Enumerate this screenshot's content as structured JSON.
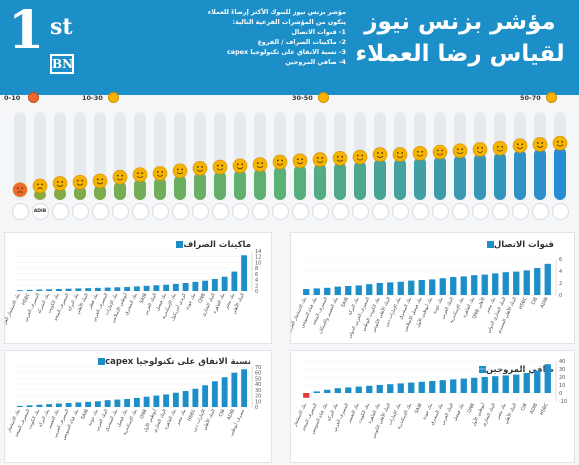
{
  "header": {
    "title_line1": "مؤشر بزنس نيوز",
    "title_line2": "لقياس رضا العملاء",
    "logo_big": "1",
    "logo_sup": "st",
    "logo_box": "BN",
    "intro": [
      "مؤشر بزنس نيوز للبنوك الأكثر إرضاءً للعملاء",
      "يتكون من المؤشرات الفرعية التالية:",
      "1- قنوات الاتصال",
      "2- ماكينات الصراف / الفروع",
      "3- نسبة الانفاق على تكنولوجيا capex",
      "4- صافي المروجين"
    ],
    "brand_color": "#1c8fc8"
  },
  "bands": [
    {
      "label": "0-10",
      "face": "angry-face-icon"
    },
    {
      "label": "10-30",
      "face": "neutral-face-icon"
    },
    {
      "label": "30-50",
      "face": "smile-face-icon"
    },
    {
      "label": "50-70",
      "face": "happy-face-icon"
    }
  ],
  "main_chart": {
    "type": "bar",
    "ylim": [
      0,
      70
    ],
    "values": [
      5,
      8,
      10,
      11,
      12,
      15,
      17,
      18,
      20,
      22,
      23,
      24,
      25,
      27,
      28,
      29,
      30,
      31,
      33,
      33,
      34,
      35,
      36,
      37,
      38,
      40,
      41,
      42
    ],
    "bank_logos": [
      "",
      "ADIB",
      "",
      "",
      "",
      "",
      "",
      "",
      "",
      "",
      "",
      "",
      "",
      "",
      "",
      "",
      "",
      "",
      "",
      "",
      "",
      "",
      "",
      "",
      "",
      "",
      "",
      ""
    ]
  },
  "chart_data": [
    {
      "type": "bar",
      "title": "قنوات الاتصال",
      "ylim": [
        0,
        6
      ],
      "ticks": [
        "0",
        "2",
        "4",
        "6"
      ],
      "categories": [
        "بنك الاستثمار العربي",
        "بنك قناة السويس",
        "المصرف المتحد",
        "بنك التعمير والإسكان",
        "SAIB",
        "بنك البركة",
        "المصرف العربي الدولي",
        "بنك الكويت الوطني",
        "البنك الأهلي الكويتي",
        "بنك الإمارات دبي",
        "بنك المشرق",
        "بنك فيصل الإسلامي",
        "بنك أبوظبي الأول",
        "بنك عودة",
        "البنك العربي",
        "بنك الإسكندرية",
        "بنك القاهرة",
        "QNB الأهلي",
        "بنك مصر",
        "البنك التجاري الدولي",
        "البنك الأهلي المصري",
        "HSBC",
        "CIB",
        "ADIB"
      ],
      "values": [
        1.0,
        1.1,
        1.2,
        1.4,
        1.5,
        1.6,
        1.8,
        2.0,
        2.1,
        2.2,
        2.4,
        2.5,
        2.6,
        2.8,
        3.0,
        3.1,
        3.3,
        3.4,
        3.6,
        3.8,
        3.9,
        4.1,
        4.5,
        5.2
      ]
    },
    {
      "type": "bar",
      "title": "ماكينات الصراف",
      "ylim": [
        0,
        14
      ],
      "ticks": [
        "0",
        "2",
        "4",
        "6",
        "8",
        "10",
        "12",
        "14"
      ],
      "categories": [
        "بنك الاستثمار العربي",
        "HSBC",
        "المصرف العربي",
        "بنك الشركة",
        "بنك الكويت",
        "المصرف المتحد",
        "بنك البركة",
        "البنك الأهلي",
        "بنك قطر",
        "المصرف العربي",
        "بنك الإمارات",
        "أبوظبي الإسلامي",
        "بنك المشرق",
        "SAIB",
        "البنك العربي",
        "بنك فيصل",
        "بنك الإسكندرية",
        "كريدي أجريكول",
        "بنك عودة",
        "QNB",
        "البنك التجاري",
        "بنك القاهرة",
        "بنك مصر",
        "البنك الأهلي"
      ],
      "values": [
        0.3,
        0.4,
        0.5,
        0.6,
        0.7,
        0.8,
        0.9,
        1.0,
        1.1,
        1.2,
        1.3,
        1.4,
        1.6,
        1.8,
        2.0,
        2.2,
        2.5,
        2.8,
        3.2,
        3.6,
        4.2,
        5.0,
        6.8,
        12.5
      ]
    },
    {
      "type": "bar",
      "title": "صافي المروجين",
      "ylim": [
        -10,
        40
      ],
      "ticks": [
        "-10",
        "0",
        "10",
        "20",
        "30",
        "40"
      ],
      "categories": [
        "بنك الاستثمار",
        "المصرف المتحد",
        "بنك قناة السويس",
        "بنك البركة",
        "المصرف العربي",
        "بنك التعمير",
        "بنك الكويت",
        "بنك القاهرة",
        "البنك الأهلي الكويتي",
        "بنك الإمارات",
        "بنك الإسكندرية",
        "SAIB",
        "بنك عودة",
        "بنك المشرق",
        "البنك العربي",
        "بنك فيصل",
        "QNB",
        "أبوظبي الأول",
        "البنك التجاري",
        "بنك مصر",
        "البنك الأهلي",
        "CIB",
        "ADIB",
        "HSBC"
      ],
      "values": [
        -6,
        2,
        4,
        6,
        7,
        8,
        9,
        10,
        11,
        12,
        13,
        14,
        15,
        16,
        17,
        18,
        19,
        20,
        21,
        22,
        23,
        25,
        28,
        36
      ]
    },
    {
      "type": "bar",
      "title": "نسبة الانفاق على تكنولوجيا capex",
      "ylim": [
        0,
        70
      ],
      "ticks": [
        "0",
        "10",
        "20",
        "30",
        "40",
        "50",
        "60",
        "70"
      ],
      "categories": [
        "بنك الاستثمار",
        "المصرف المتحد",
        "بنك الكويت",
        "بنك البركة",
        "بنك التعمير",
        "المصرف العربي",
        "بنك قناة السويس",
        "SAIB",
        "بنك عودة",
        "البنك العربي",
        "بنك المشرق",
        "بنك فيصل",
        "بنك الإسكندرية",
        "QNB",
        "أبوظبي الأول",
        "البنك التجاري",
        "بنك القاهرة",
        "بنك مصر",
        "HSBC",
        "الإمارات دبي",
        "البنك الأهلي",
        "CIB",
        "ADIB",
        "مصرف أبوظبي"
      ],
      "values": [
        2,
        3,
        4,
        5,
        6,
        7,
        8,
        9,
        10,
        12,
        13,
        14,
        16,
        18,
        20,
        22,
        25,
        28,
        32,
        38,
        45,
        52,
        60,
        66
      ]
    }
  ]
}
